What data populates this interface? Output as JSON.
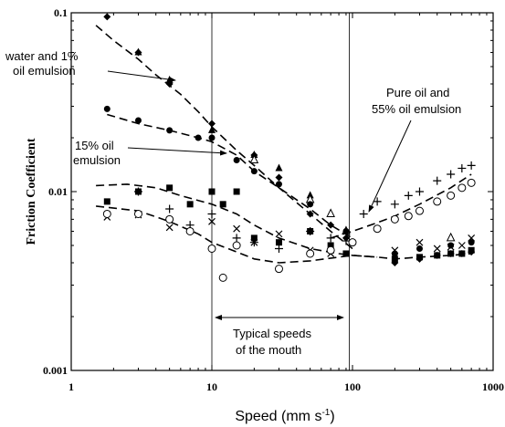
{
  "chart_data": {
    "type": "scatter",
    "title": "",
    "xlabel": "Speed (mm s",
    "xlabel_sup": "-1",
    "xlabel_close": ")",
    "ylabel": "Friction Coefficient",
    "xscale": "log",
    "yscale": "log",
    "xlim": [
      1,
      1000
    ],
    "ylim": [
      0.001,
      0.1
    ],
    "xticks": [
      1,
      10,
      100,
      1000
    ],
    "xtick_labels": [
      "1",
      "10",
      "100",
      "1000"
    ],
    "yticks": [
      0.001,
      0.01,
      0.1
    ],
    "ytick_labels": [
      "0.001",
      "0.01",
      "0.1"
    ],
    "grid": false,
    "reference_lines_x": [
      10,
      95
    ],
    "series": [
      {
        "marker": "diamond",
        "x": [
          1.8,
          3.0,
          5.0,
          10.0,
          20,
          30,
          50,
          70,
          90,
          200,
          300,
          400,
          500,
          600,
          700
        ],
        "y": [
          0.095,
          0.06,
          0.04,
          0.024,
          0.016,
          0.012,
          0.0075,
          0.0065,
          0.0055,
          0.004,
          0.0042,
          0.0044,
          0.0045,
          0.0045,
          0.0046
        ]
      },
      {
        "marker": "triangle-filled",
        "x": [
          3.0,
          5.0,
          10.0,
          20.0,
          30.0,
          50.0
        ],
        "y": [
          0.06,
          0.042,
          0.022,
          0.016,
          0.0135,
          0.0095
        ]
      },
      {
        "marker": "triangle-open",
        "x": [
          20.0,
          50.0,
          70.0,
          90.0,
          500.0
        ],
        "y": [
          0.015,
          0.009,
          0.0075,
          0.006,
          0.0055
        ]
      },
      {
        "marker": "circle-filled",
        "x": [
          1.8,
          3.0,
          5.0,
          8.0,
          10.0,
          15.0,
          20.0,
          30.0,
          50.0,
          90.0,
          200,
          300,
          500,
          700
        ],
        "y": [
          0.029,
          0.025,
          0.022,
          0.02,
          0.02,
          0.015,
          0.013,
          0.011,
          0.0085,
          0.006,
          0.0045,
          0.0048,
          0.005,
          0.0052
        ]
      },
      {
        "marker": "square-filled",
        "x": [
          1.8,
          3.0,
          5.0,
          7.0,
          10.0,
          12.0,
          15.0,
          20.0,
          30.0,
          50.0,
          70.0,
          90.0,
          200,
          300,
          400,
          500,
          600,
          700
        ],
        "y": [
          0.0088,
          0.01,
          0.0105,
          0.0085,
          0.01,
          0.0085,
          0.01,
          0.0055,
          0.0052,
          0.006,
          0.005,
          0.0045,
          0.0042,
          0.0043,
          0.0044,
          0.0045,
          0.0045,
          0.0047
        ]
      },
      {
        "marker": "x",
        "x": [
          1.8,
          3.0,
          5.0,
          10.0,
          15.0,
          20.0,
          30.0,
          50.0,
          70.0,
          200,
          300,
          400,
          500,
          600,
          700
        ],
        "y": [
          0.0072,
          0.0074,
          0.0063,
          0.0068,
          0.0062,
          0.0052,
          0.0058,
          0.0047,
          0.0045,
          0.0047,
          0.0052,
          0.0048,
          0.0049,
          0.005,
          0.0055
        ]
      },
      {
        "marker": "plus",
        "x": [
          3.0,
          5.0,
          7.0,
          10.0,
          15.0,
          20.0,
          30.0,
          50.0,
          70.0,
          90.0,
          120,
          150,
          200,
          250,
          300,
          400,
          500,
          600,
          700
        ],
        "y": [
          0.01,
          0.008,
          0.0065,
          0.0075,
          0.0055,
          0.0052,
          0.0048,
          0.006,
          0.0055,
          0.0053,
          0.0075,
          0.0088,
          0.0085,
          0.0095,
          0.01,
          0.0115,
          0.0125,
          0.0135,
          0.014
        ]
      },
      {
        "marker": "circle-open",
        "x": [
          1.8,
          3.0,
          5.0,
          7.0,
          10.0,
          12.0,
          15.0,
          30.0,
          50.0,
          70.0,
          100,
          150,
          200,
          250,
          300,
          400,
          500,
          600,
          700
        ],
        "y": [
          0.0075,
          0.0075,
          0.007,
          0.006,
          0.0048,
          0.0033,
          0.005,
          0.0037,
          0.0045,
          0.0047,
          0.0052,
          0.0062,
          0.007,
          0.0073,
          0.0078,
          0.0088,
          0.0095,
          0.0105,
          0.0112
        ]
      }
    ],
    "fit_lines": [
      {
        "x": [
          1.5,
          2,
          3,
          4,
          6,
          8,
          10,
          15,
          20,
          30,
          50,
          70,
          100
        ],
        "y": [
          0.085,
          0.07,
          0.055,
          0.045,
          0.035,
          0.028,
          0.023,
          0.017,
          0.014,
          0.0105,
          0.0075,
          0.006,
          0.0048
        ]
      },
      {
        "x": [
          1.8,
          3,
          5,
          8,
          10,
          15,
          20,
          30,
          50,
          70,
          100
        ],
        "y": [
          0.027,
          0.024,
          0.022,
          0.02,
          0.019,
          0.016,
          0.013,
          0.0105,
          0.008,
          0.0065,
          0.0055
        ]
      },
      {
        "x": [
          1.5,
          2.5,
          4,
          6,
          10,
          15,
          20,
          30,
          50,
          80,
          100,
          150
        ],
        "y": [
          0.0108,
          0.011,
          0.0105,
          0.0095,
          0.0085,
          0.0075,
          0.0065,
          0.0055,
          0.0048,
          0.0045,
          0.0044,
          0.0043
        ]
      },
      {
        "x": [
          1.5,
          3,
          5,
          8,
          10,
          15,
          20,
          30,
          50,
          80,
          100,
          150,
          200,
          300,
          500,
          700
        ],
        "y": [
          0.0083,
          0.0078,
          0.0068,
          0.0058,
          0.0052,
          0.0046,
          0.0042,
          0.004,
          0.0041,
          0.0043,
          0.0044,
          0.0043,
          0.0042,
          0.0043,
          0.0044,
          0.0045
        ]
      },
      {
        "x": [
          70,
          100,
          150,
          200,
          300,
          500,
          700
        ],
        "y": [
          0.0055,
          0.006,
          0.0067,
          0.0073,
          0.0085,
          0.0105,
          0.0125
        ]
      }
    ],
    "annotations": [
      {
        "lines": [
          "water and 1%",
          "oil emulsion"
        ]
      },
      {
        "lines": [
          "15% oil",
          "emulsion"
        ]
      },
      {
        "lines": [
          "Pure oil and",
          "55% oil emulsion"
        ]
      },
      {
        "lines": [
          "Typical speeds",
          "of the mouth"
        ]
      }
    ]
  }
}
